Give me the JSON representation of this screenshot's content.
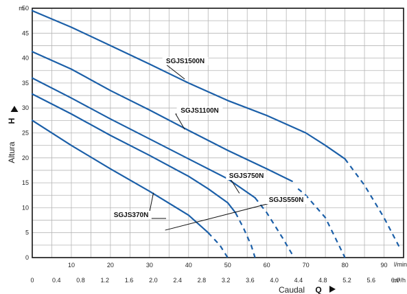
{
  "chart_data": {
    "type": "line",
    "colors": {
      "line": "#1b5fa8",
      "grid": "#b5b5b5",
      "frame": "#111111",
      "background": "#ffffff"
    },
    "y_axis": {
      "unit": "m",
      "title": "Altura",
      "symbol": "H",
      "range": [
        0,
        50
      ],
      "ticks": [
        "0",
        "5",
        "10",
        "15",
        "20",
        "25",
        "30",
        "35",
        "40",
        "45",
        "50"
      ]
    },
    "x_axis_lmin": {
      "unit": "l/min",
      "range": [
        0,
        95
      ],
      "ticks": [
        "10",
        "20",
        "30",
        "40",
        "50",
        "60",
        "70",
        "80",
        "90"
      ]
    },
    "x_axis_m3h": {
      "unit": "m³/h",
      "title": "Caudal",
      "symbol": "Q",
      "ticks": [
        "0",
        "0.4",
        "0.8",
        "1.2",
        "1.6",
        "2.0",
        "2.4",
        "2.8",
        "3.2",
        "3.6",
        "4.0",
        "4.4",
        "4.8",
        "5.2",
        "5.6",
        "6.0"
      ]
    },
    "grid": true,
    "series": [
      {
        "name": "SGJS1500N",
        "solid": [
          [
            0,
            49.5
          ],
          [
            10,
            46.2
          ],
          [
            20,
            42.5
          ],
          [
            30,
            38.8
          ],
          [
            40,
            35.0
          ],
          [
            50,
            31.5
          ],
          [
            60,
            28.5
          ],
          [
            70,
            25.0
          ],
          [
            75,
            22.5
          ],
          [
            80,
            19.8
          ]
        ],
        "dashed": [
          [
            80,
            19.8
          ],
          [
            85,
            14.5
          ],
          [
            90,
            8.0
          ],
          [
            94,
            2.0
          ]
        ]
      },
      {
        "name": "SGJS1100N",
        "solid": [
          [
            0,
            41.3
          ],
          [
            10,
            37.8
          ],
          [
            20,
            33.5
          ],
          [
            30,
            29.6
          ],
          [
            40,
            25.5
          ],
          [
            50,
            21.5
          ],
          [
            60,
            17.8
          ],
          [
            66.5,
            15.3
          ]
        ],
        "dashed": [
          [
            68,
            13.8
          ],
          [
            70,
            12.5
          ],
          [
            75,
            8.0
          ],
          [
            80,
            0
          ]
        ]
      },
      {
        "name": "SGJS750N",
        "solid": [
          [
            0,
            36.0
          ],
          [
            10,
            32.0
          ],
          [
            20,
            27.8
          ],
          [
            30,
            23.8
          ],
          [
            40,
            19.8
          ],
          [
            50,
            15.8
          ],
          [
            57,
            12.0
          ]
        ],
        "dashed": [
          [
            57,
            12.0
          ],
          [
            60,
            9.0
          ],
          [
            64,
            4.0
          ],
          [
            67,
            0
          ]
        ]
      },
      {
        "name": "SGJS550N",
        "solid": [
          [
            0,
            32.8
          ],
          [
            10,
            28.8
          ],
          [
            20,
            24.5
          ],
          [
            30,
            20.5
          ],
          [
            40,
            16.3
          ],
          [
            45,
            13.8
          ],
          [
            50,
            11.0
          ],
          [
            52,
            9.0
          ]
        ],
        "dashed": [
          [
            52,
            9.0
          ],
          [
            54,
            6.0
          ],
          [
            56,
            2.5
          ],
          [
            57,
            0
          ]
        ]
      },
      {
        "name": "SGJS370N",
        "solid": [
          [
            0,
            27.5
          ],
          [
            10,
            22.5
          ],
          [
            20,
            17.8
          ],
          [
            30,
            13.3
          ],
          [
            40,
            8.5
          ],
          [
            45,
            5.0
          ]
        ],
        "dashed": [
          [
            45,
            5.0
          ],
          [
            48,
            2.5
          ],
          [
            50,
            0
          ]
        ]
      }
    ]
  }
}
